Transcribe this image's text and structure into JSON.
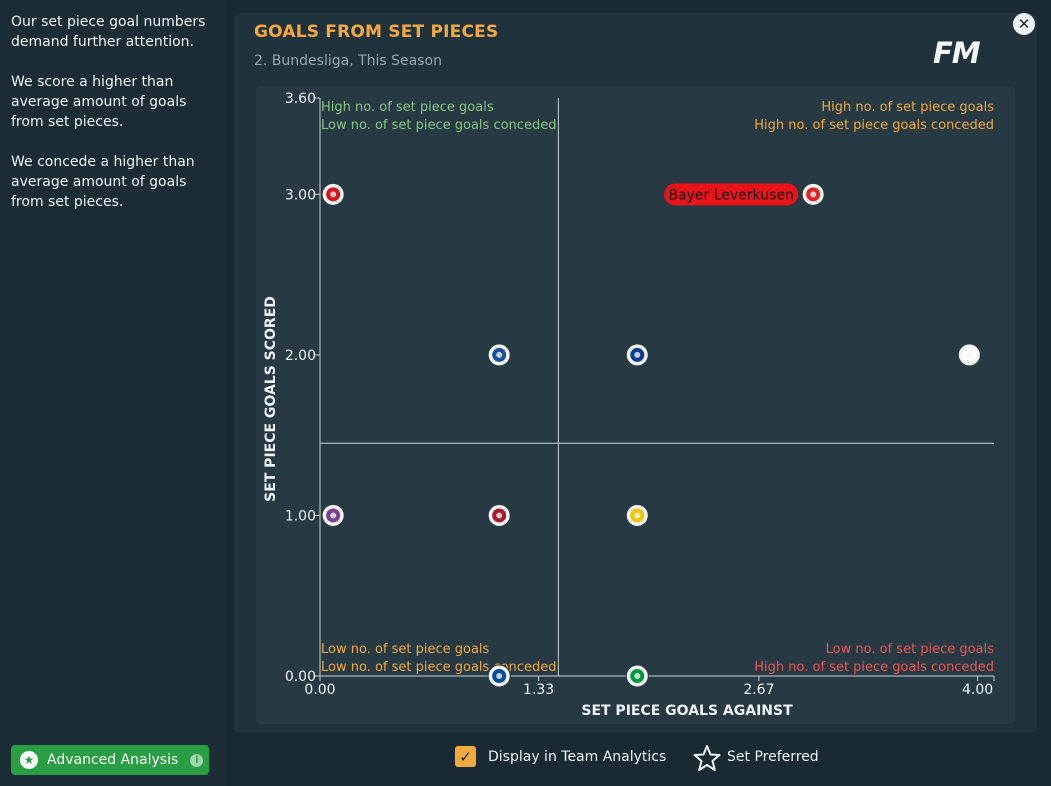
{
  "sidebar": {
    "paragraphs": [
      "Our set piece goal numbers demand further attention.",
      "We score a higher than average amount of goals from set pieces.",
      "We concede a higher than average amount of goals from set pieces."
    ],
    "advanced_button": "Advanced Analysis",
    "advanced_info": "i"
  },
  "header": {
    "title": "GOALS FROM SET PIECES",
    "subtitle": "2. Bundesliga, This Season",
    "logo": "FM",
    "close_icon": "close-icon"
  },
  "footer": {
    "display_label": "Display in Team Analytics",
    "display_checked": true,
    "preferred_label": "Set Preferred"
  },
  "colors": {
    "accent": "#f3a93c",
    "green": "#84c782",
    "red": "#ef5350",
    "highlight": "#e8141a",
    "button_green": "#2a9e45"
  },
  "chart_data": {
    "type": "scatter",
    "xlabel": "SET PIECE GOALS AGAINST",
    "ylabel": "SET PIECE GOALS SCORED",
    "xlim": [
      0,
      4.1
    ],
    "ylim": [
      0,
      3.6
    ],
    "xticks": [
      {
        "value": 0,
        "label": "0.00"
      },
      {
        "value": 1.33,
        "label": "1.33"
      },
      {
        "value": 2.67,
        "label": "2.67"
      },
      {
        "value": 4.0,
        "label": "4.00"
      }
    ],
    "yticks": [
      {
        "value": 0,
        "label": "0.00"
      },
      {
        "value": 1,
        "label": "1.00"
      },
      {
        "value": 2,
        "label": "2.00"
      },
      {
        "value": 3,
        "label": "3.00"
      },
      {
        "value": 3.6,
        "label": "3.60"
      }
    ],
    "average_x": 1.45,
    "average_y": 1.45,
    "quadrants": {
      "top_left": [
        "High no. of set piece goals",
        "Low no. of set piece goals conceded"
      ],
      "top_right": [
        "High no. of set piece goals",
        "High no. of set piece goals conceded"
      ],
      "bottom_left": [
        "Low no. of set piece goals",
        "Low no. of set piece goals conceded"
      ],
      "bottom_right": [
        "Low no. of set piece goals",
        "High no. of set piece goals conceded"
      ]
    },
    "points": [
      {
        "x": 0.08,
        "y": 3.0,
        "icon": "kaiserslautern-badge-icon",
        "color": "#d7141a"
      },
      {
        "x": 3.0,
        "y": 3.0,
        "icon": "leverkusen-badge-icon",
        "color": "#e32221",
        "label": "Bayer Leverkusen",
        "highlight": true
      },
      {
        "x": 1.09,
        "y": 2.0,
        "icon": "hansa-rostock-badge-icon",
        "color": "#1b4e9b"
      },
      {
        "x": 1.93,
        "y": 2.0,
        "icon": "hamburg-badge-icon",
        "color": "#0a3d91"
      },
      {
        "x": 3.95,
        "y": 2.0,
        "icon": "1860-munich-badge-icon",
        "color": "#ffffff"
      },
      {
        "x": 0.08,
        "y": 1.0,
        "icon": "osnabrueck-badge-icon",
        "color": "#7b3f98"
      },
      {
        "x": 1.09,
        "y": 1.0,
        "icon": "nuernberg-badge-icon",
        "color": "#a6192e"
      },
      {
        "x": 1.93,
        "y": 1.0,
        "icon": "braunschweig-badge-icon",
        "color": "#f2c500"
      },
      {
        "x": 1.09,
        "y": 0.0,
        "icon": "schalke-badge-icon",
        "color": "#004d9d"
      },
      {
        "x": 1.93,
        "y": 0.0,
        "icon": "fuerth-badge-icon",
        "color": "#009a3e"
      }
    ]
  }
}
